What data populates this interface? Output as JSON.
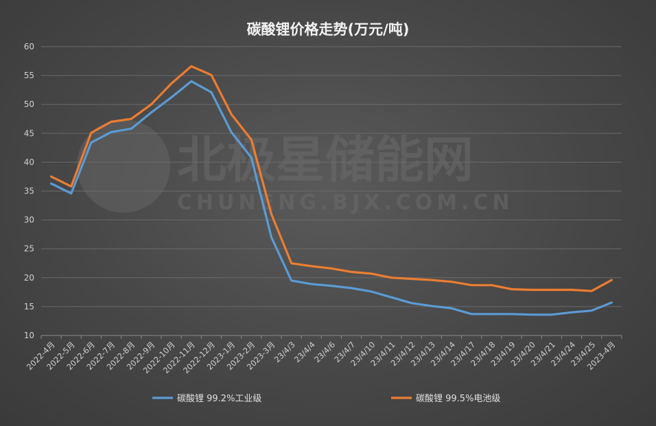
{
  "chart_data": {
    "type": "line",
    "title": "碳酸锂价格走势(万元/吨)",
    "ylim": [
      10,
      60
    ],
    "yticks": [
      10,
      15,
      20,
      25,
      30,
      35,
      40,
      45,
      50,
      55,
      60
    ],
    "categories": [
      "2022-4月",
      "2022-5月",
      "2022-6月",
      "2022-7月",
      "2022-8月",
      "2022-9月",
      "2022-10月",
      "2022-11月",
      "2022-12月",
      "2023-1月",
      "2023-2月",
      "2023-3月",
      "23/4/3",
      "23/4/4",
      "23/4/6",
      "23/4/7",
      "23/4/10",
      "23/4/11",
      "23/4/12",
      "23/4/13",
      "23/4/14",
      "23/4/17",
      "23/4/18",
      "23/4/19",
      "23/4/20",
      "23/4/21",
      "23/4/24",
      "23/4/25",
      "2023-4月"
    ],
    "grid": true,
    "legend_position": "bottom",
    "series": [
      {
        "name": "碳酸锂 99.2%工业级",
        "color": "#5b9bd5",
        "values": [
          36.3,
          34.6,
          43.4,
          45.2,
          45.8,
          48.6,
          51.2,
          54.0,
          52.1,
          45.2,
          40.8,
          27.0,
          19.5,
          18.9,
          18.6,
          18.2,
          17.6,
          16.6,
          15.6,
          15.1,
          14.7,
          13.7,
          13.7,
          13.7,
          13.6,
          13.6,
          14.0,
          14.3,
          15.7
        ]
      },
      {
        "name": "碳酸锂 99.5%电池级",
        "color": "#ed7d31",
        "values": [
          37.5,
          35.8,
          45.1,
          47.0,
          47.5,
          50.0,
          53.6,
          56.6,
          55.1,
          48.3,
          43.9,
          31.0,
          22.5,
          22.0,
          21.6,
          21.0,
          20.7,
          20.0,
          19.8,
          19.6,
          19.3,
          18.7,
          18.7,
          18.0,
          17.9,
          17.9,
          17.9,
          17.7,
          19.6
        ]
      }
    ]
  },
  "watermark": {
    "main": "北极星储能网",
    "sub": "CHUNENG.BJX.COM.CN"
  }
}
